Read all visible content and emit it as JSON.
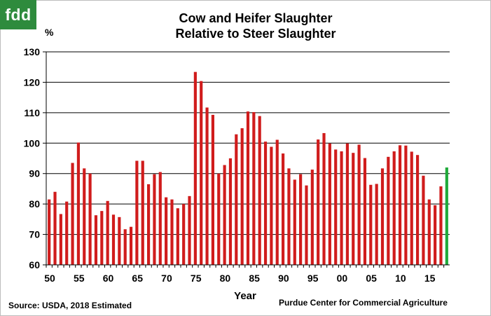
{
  "logo": {
    "text": "fdd",
    "color": "#2e8b3d"
  },
  "chart_data": {
    "type": "bar",
    "title_line1": "Cow and Heifer Slaughter",
    "title_line2": "Relative to Steer Slaughter",
    "ylabel": "%",
    "xlabel": "Year",
    "ylim": [
      60,
      130
    ],
    "yticks": [
      60,
      70,
      80,
      90,
      100,
      110,
      120,
      130
    ],
    "grid": true,
    "x_tick_labels": [
      "50",
      "55",
      "60",
      "65",
      "70",
      "75",
      "80",
      "85",
      "90",
      "95",
      "00",
      "05",
      "10",
      "15"
    ],
    "categories": [
      "1950",
      "1951",
      "1952",
      "1953",
      "1954",
      "1955",
      "1956",
      "1957",
      "1958",
      "1959",
      "1960",
      "1961",
      "1962",
      "1963",
      "1964",
      "1965",
      "1966",
      "1967",
      "1968",
      "1969",
      "1970",
      "1971",
      "1972",
      "1973",
      "1974",
      "1975",
      "1976",
      "1977",
      "1978",
      "1979",
      "1980",
      "1981",
      "1982",
      "1983",
      "1984",
      "1985",
      "1986",
      "1987",
      "1988",
      "1989",
      "1990",
      "1991",
      "1992",
      "1993",
      "1994",
      "1995",
      "1996",
      "1997",
      "1998",
      "1999",
      "2000",
      "2001",
      "2002",
      "2003",
      "2004",
      "2005",
      "2006",
      "2007",
      "2008",
      "2009",
      "2010",
      "2011",
      "2012",
      "2013",
      "2014",
      "2015",
      "2016",
      "2017",
      "2018"
    ],
    "values": [
      81.5,
      84,
      76.7,
      80.8,
      93.5,
      100.2,
      91.7,
      90,
      76.3,
      77.7,
      81,
      76.5,
      75.7,
      71.7,
      72.5,
      94.2,
      94.2,
      86.5,
      89.8,
      90.5,
      82.2,
      81.5,
      78.6,
      80,
      82.6,
      123.4,
      120.4,
      111.7,
      109.3,
      90,
      92.8,
      95,
      102.9,
      104.9,
      110.4,
      110.2,
      108.9,
      100.5,
      98.8,
      101.1,
      96.6,
      91.7,
      88,
      89.8,
      86.1,
      91.3,
      101.2,
      103.3,
      99.9,
      97.9,
      97.3,
      99.9,
      96.8,
      99.5,
      95.1,
      86.3,
      86.6,
      91.7,
      95.5,
      97.3,
      99.3,
      99.2,
      97.2,
      96.1,
      89.3,
      81.5,
      79.6,
      85.8,
      92
    ],
    "bar_color": "#d01c1c",
    "estimated_bar_color": "#1faa3a",
    "estimated_category": "2018"
  },
  "notes": {
    "source": "Source:  USDA, 2018 Estimated",
    "credit": "Purdue Center for Commercial Agriculture"
  }
}
